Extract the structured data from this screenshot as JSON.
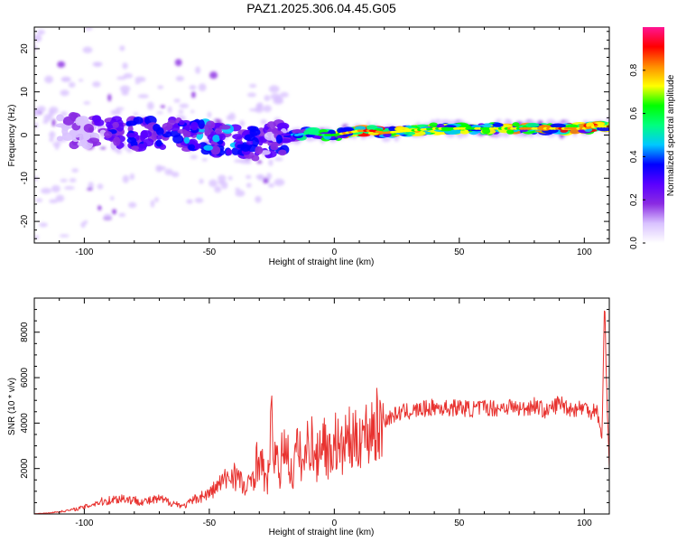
{
  "figure_title": "PAZ1.2025.306.04.45.G05",
  "chart_data": [
    {
      "type": "heatmap",
      "title": "PAZ1.2025.306.04.45.G05",
      "xlabel": "Height of straight line (km)",
      "ylabel": "Frequency (Hz)",
      "xlim": [
        -120,
        110
      ],
      "ylim": [
        -25,
        25
      ],
      "xticks": [
        -100,
        -50,
        0,
        50,
        100
      ],
      "xtick_labels": [
        "-100",
        "-50",
        "0",
        "50",
        "100"
      ],
      "yticks": [
        -20,
        -10,
        0,
        10,
        20
      ],
      "ytick_labels": [
        "-20",
        "-10",
        "0",
        "10",
        "20"
      ],
      "grid": false,
      "colorbar": {
        "label": "Normalized spectral amplitude",
        "range": [
          0,
          1
        ],
        "ticks": [
          0,
          0.2,
          0.4,
          0.6,
          0.8
        ],
        "tick_labels": [
          "0.0",
          "0.2",
          "0.4",
          "0.6",
          "0.8"
        ],
        "colormap": [
          "#ffffff",
          "#d9c2ff",
          "#8a2be2",
          "#5a00ff",
          "#0000ff",
          "#00c8ff",
          "#00ff7f",
          "#00ff00",
          "#ffff00",
          "#ff8c00",
          "#ff0000",
          "#ff1493"
        ]
      },
      "ridge": {
        "x": [
          -120,
          -110,
          -100,
          -90,
          -80,
          -70,
          -60,
          -50,
          -40,
          -30,
          -25,
          -20,
          -15,
          -10,
          -5,
          0,
          5,
          10,
          15,
          20,
          30,
          40,
          50,
          60,
          70,
          80,
          90,
          100,
          105,
          110
        ],
        "frequency": [
          0,
          0.5,
          1,
          1,
          0,
          0.5,
          0,
          -1,
          -1.5,
          -2,
          -1,
          -0.5,
          0,
          0.5,
          0,
          0,
          0.5,
          1,
          1,
          0.5,
          1,
          1.5,
          1.5,
          1.5,
          1.5,
          1.5,
          1.5,
          1.5,
          2,
          2
        ],
        "amplitude": [
          0.1,
          0.15,
          0.2,
          0.3,
          0.35,
          0.35,
          0.4,
          0.4,
          0.4,
          0.35,
          0.3,
          0.35,
          0.45,
          0.55,
          0.65,
          0.7,
          0.8,
          0.85,
          0.9,
          0.85,
          0.75,
          0.7,
          0.7,
          0.7,
          0.75,
          0.8,
          0.85,
          0.85,
          0.8,
          0.9
        ]
      }
    },
    {
      "type": "line",
      "title": "",
      "xlabel": "Height of straight line (km)",
      "ylabel": "SNR (10 * v/v)",
      "xlim": [
        -120,
        110
      ],
      "ylim": [
        0,
        9500
      ],
      "xticks": [
        -100,
        -50,
        0,
        50,
        100
      ],
      "xtick_labels": [
        "-100",
        "-50",
        "0",
        "50",
        "100"
      ],
      "yticks": [
        2000,
        4000,
        6000,
        8000
      ],
      "ytick_labels": [
        "2000",
        "4000",
        "6000",
        "8000"
      ],
      "grid": false,
      "series": [
        {
          "name": "SNR",
          "color": "#e8322f",
          "x": [
            -120,
            -115,
            -110,
            -105,
            -100,
            -95,
            -90,
            -85,
            -80,
            -75,
            -70,
            -65,
            -60,
            -55,
            -50,
            -45,
            -40,
            -35,
            -30,
            -27,
            -25,
            -22,
            -20,
            -17,
            -15,
            -12,
            -10,
            -7,
            -5,
            -2,
            0,
            3,
            5,
            8,
            10,
            13,
            15,
            18,
            20,
            23,
            25,
            28,
            30,
            35,
            40,
            45,
            50,
            55,
            60,
            65,
            70,
            75,
            80,
            85,
            90,
            95,
            100,
            103,
            105,
            107,
            108,
            109,
            110
          ],
          "values": [
            10,
            40,
            100,
            180,
            300,
            500,
            600,
            700,
            600,
            550,
            650,
            500,
            350,
            700,
            900,
            1400,
            1800,
            1000,
            2600,
            1200,
            3800,
            1500,
            3500,
            1600,
            2800,
            2200,
            3500,
            2300,
            3600,
            2500,
            3300,
            2700,
            3400,
            3000,
            3600,
            3500,
            3900,
            3800,
            4100,
            4300,
            4400,
            4500,
            4500,
            4600,
            4700,
            4650,
            4700,
            4600,
            4700,
            4650,
            4750,
            4600,
            4800,
            4500,
            4900,
            4600,
            4700,
            4500,
            4700,
            3200,
            9300,
            5500,
            2000
          ]
        }
      ]
    }
  ]
}
